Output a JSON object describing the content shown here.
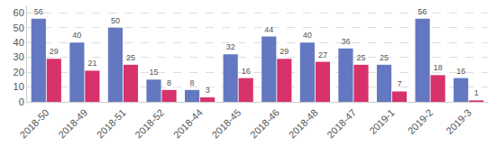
{
  "chart_data": {
    "type": "bar",
    "categories": [
      "2018-50",
      "2018-49",
      "2018-51",
      "2018-52",
      "2018-44",
      "2018-45",
      "2018-46",
      "2018-48",
      "2018-47",
      "2019-1",
      "2019-2",
      "2019-3"
    ],
    "series": [
      {
        "color": "#6378c0",
        "values": [
          56,
          40,
          50,
          15,
          8,
          32,
          44,
          40,
          36,
          25,
          56,
          16
        ]
      },
      {
        "color": "#d8326c",
        "values": [
          29,
          21,
          25,
          8,
          3,
          16,
          29,
          27,
          25,
          7,
          18,
          1
        ]
      }
    ],
    "ylim": [
      0,
      65
    ],
    "yticks": [
      0,
      10,
      20,
      30,
      40,
      50,
      60
    ],
    "grid": true,
    "data_labels": true
  }
}
